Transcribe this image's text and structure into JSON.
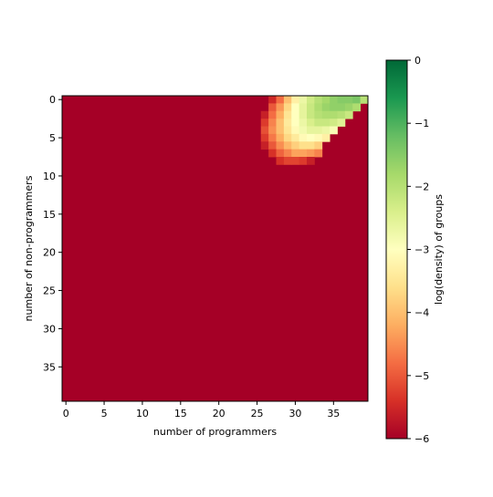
{
  "chart_data": {
    "type": "heatmap",
    "title": "",
    "xlabel": "number of programmers",
    "ylabel": "number of non-programmers",
    "x_range": [
      0,
      39
    ],
    "y_range": [
      0,
      39
    ],
    "x_ticks": [
      0,
      5,
      10,
      15,
      20,
      25,
      30,
      35
    ],
    "y_ticks": [
      0,
      5,
      10,
      15,
      20,
      25,
      30,
      35
    ],
    "y_axis_inverted": true,
    "colormap": "RdYlGn",
    "colorbar": {
      "label": "log(density) of groups",
      "range": [
        -6,
        0
      ],
      "ticks": [
        0,
        -1,
        -2,
        -3,
        -4,
        -5,
        -6
      ]
    },
    "background_value": -6,
    "row_values": [
      {
        "row": 0,
        "start_col": 27,
        "values": [
          -5.5,
          -4.8,
          -4.0,
          -3.3,
          -2.7,
          -2.3,
          -2.0,
          -1.8,
          -1.6,
          -1.5,
          -1.5,
          -1.4,
          -2.0
        ]
      },
      {
        "row": 1,
        "start_col": 27,
        "values": [
          -5.0,
          -4.4,
          -3.7,
          -3.0,
          -2.6,
          -2.2,
          -1.9,
          -1.7,
          -1.6,
          -1.6,
          -1.7,
          -1.9
        ]
      },
      {
        "row": 2,
        "start_col": 26,
        "values": [
          -5.6,
          -4.8,
          -4.2,
          -3.5,
          -3.0,
          -2.6,
          -2.2,
          -2.0,
          -1.9,
          -1.9,
          -2.0,
          -2.2
        ]
      },
      {
        "row": 3,
        "start_col": 26,
        "values": [
          -5.3,
          -4.6,
          -4.0,
          -3.4,
          -3.0,
          -2.7,
          -2.4,
          -2.2,
          -2.2,
          -2.3,
          -2.5
        ]
      },
      {
        "row": 4,
        "start_col": 26,
        "values": [
          -5.1,
          -4.5,
          -4.0,
          -3.5,
          -3.1,
          -2.8,
          -2.6,
          -2.6,
          -2.7,
          -2.9
        ]
      },
      {
        "row": 5,
        "start_col": 26,
        "values": [
          -5.3,
          -4.7,
          -4.2,
          -3.7,
          -3.4,
          -3.1,
          -3.0,
          -3.1,
          -3.3
        ]
      },
      {
        "row": 6,
        "start_col": 26,
        "values": [
          -5.6,
          -5.0,
          -4.5,
          -4.1,
          -3.8,
          -3.6,
          -3.6,
          -3.8
        ]
      },
      {
        "row": 7,
        "start_col": 27,
        "values": [
          -5.4,
          -4.9,
          -4.6,
          -4.3,
          -4.3,
          -4.4,
          -4.6
        ]
      },
      {
        "row": 8,
        "start_col": 28,
        "values": [
          -5.4,
          -5.2,
          -5.2,
          -5.3,
          -5.6
        ]
      }
    ]
  }
}
